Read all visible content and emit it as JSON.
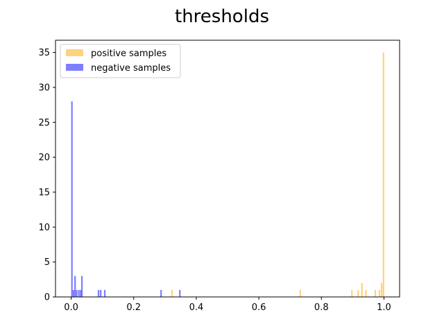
{
  "chart_data": {
    "type": "bar",
    "title": "thresholds",
    "xlabel": "",
    "ylabel": "",
    "xlim": [
      -0.05,
      1.05
    ],
    "ylim": [
      0,
      36.75
    ],
    "grid": false,
    "legend_position": "top-left",
    "x_ticks": [
      0.0,
      0.2,
      0.4,
      0.6,
      0.8,
      1.0
    ],
    "x_tick_labels": [
      "0.0",
      "0.2",
      "0.4",
      "0.6",
      "0.8",
      "1.0"
    ],
    "y_ticks": [
      0,
      5,
      10,
      15,
      20,
      25,
      30,
      35
    ],
    "y_tick_labels": [
      "0",
      "5",
      "10",
      "15",
      "20",
      "25",
      "30",
      "35"
    ],
    "bin_width": 0.005,
    "series": [
      {
        "name": "positive samples",
        "color": "#ffa500",
        "opacity": 0.5,
        "bins": [
          {
            "x": 0.32,
            "count": 1
          },
          {
            "x": 0.73,
            "count": 1
          },
          {
            "x": 0.895,
            "count": 1
          },
          {
            "x": 0.915,
            "count": 1
          },
          {
            "x": 0.927,
            "count": 2
          },
          {
            "x": 0.94,
            "count": 1
          },
          {
            "x": 0.97,
            "count": 1
          },
          {
            "x": 0.983,
            "count": 1
          },
          {
            "x": 0.99,
            "count": 2
          },
          {
            "x": 0.996,
            "count": 35
          }
        ]
      },
      {
        "name": "negative samples",
        "color": "#0000ff",
        "opacity": 0.5,
        "bins": [
          {
            "x": 0.0,
            "count": 28
          },
          {
            "x": 0.005,
            "count": 1
          },
          {
            "x": 0.01,
            "count": 3
          },
          {
            "x": 0.015,
            "count": 1
          },
          {
            "x": 0.022,
            "count": 1
          },
          {
            "x": 0.028,
            "count": 1
          },
          {
            "x": 0.032,
            "count": 3
          },
          {
            "x": 0.085,
            "count": 1
          },
          {
            "x": 0.092,
            "count": 1
          },
          {
            "x": 0.105,
            "count": 1
          },
          {
            "x": 0.285,
            "count": 1
          },
          {
            "x": 0.345,
            "count": 1
          }
        ]
      }
    ]
  }
}
